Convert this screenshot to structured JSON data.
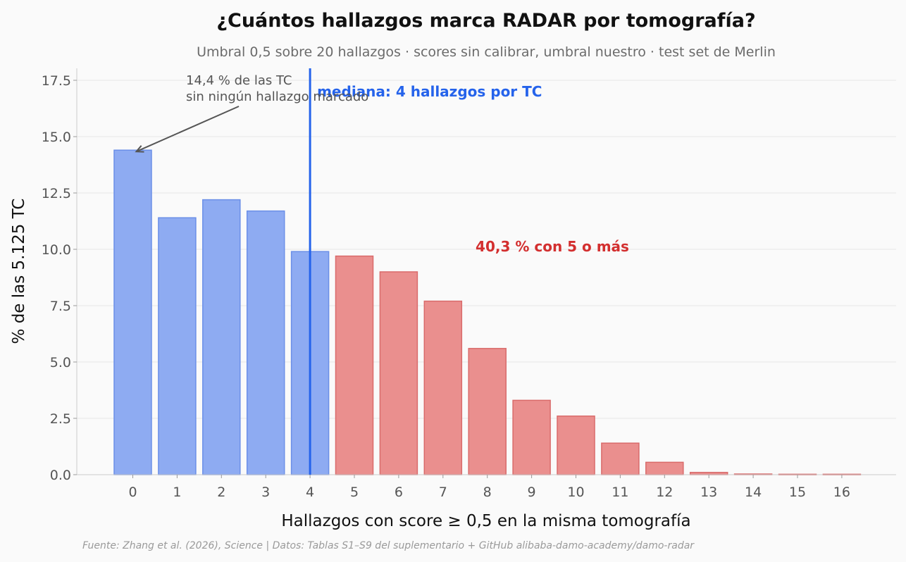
{
  "chart_data": {
    "type": "bar",
    "title": "¿Cuántos hallazgos marca RADAR por tomografía?",
    "subtitle": "Umbral 0,5 sobre 20 hallazgos · scores sin calibrar, umbral nuestro · test set de Merlin",
    "xlabel": "Hallazgos con score ≥ 0,5 en la misma tomografía",
    "ylabel": "% de las 5.125 TC",
    "categories": [
      "0",
      "1",
      "2",
      "3",
      "4",
      "5",
      "6",
      "7",
      "8",
      "9",
      "10",
      "11",
      "12",
      "13",
      "14",
      "15",
      "16"
    ],
    "values": [
      14.4,
      11.4,
      12.2,
      11.7,
      9.9,
      9.7,
      9.0,
      7.7,
      5.6,
      3.3,
      2.6,
      1.4,
      0.55,
      0.1,
      0.03,
      0.02,
      0.02
    ],
    "ylim": [
      0,
      18
    ],
    "yticks": [
      0.0,
      2.5,
      5.0,
      7.5,
      10.0,
      12.5,
      15.0,
      17.5
    ],
    "ytick_labels": [
      "0.0",
      "2.5",
      "5.0",
      "7.5",
      "10.0",
      "12.5",
      "15.0",
      "17.5"
    ],
    "grid": "horizontal",
    "colors": {
      "low_fill": "#8eabf2",
      "low_stroke": "#6b8fe8",
      "high_fill": "#ea8f8e",
      "high_stroke": "#d96b6b",
      "median": "#2563eb",
      "share": "#d32f2f"
    },
    "median": {
      "x": 4,
      "label": "mediana: 4 hallazgos por TC"
    },
    "annotation_zero": {
      "target": 0,
      "line1": "14,4 % de las TC",
      "line2": "sin ningún hallazgo marcado"
    },
    "annotation_share": {
      "label": "40,3 % con 5 o más"
    },
    "highlight_from": 5,
    "source": "Fuente: Zhang et al. (2026), Science | Datos: Tablas S1–S9 del suplementario + GitHub alibaba-damo-academy/damo-radar"
  }
}
